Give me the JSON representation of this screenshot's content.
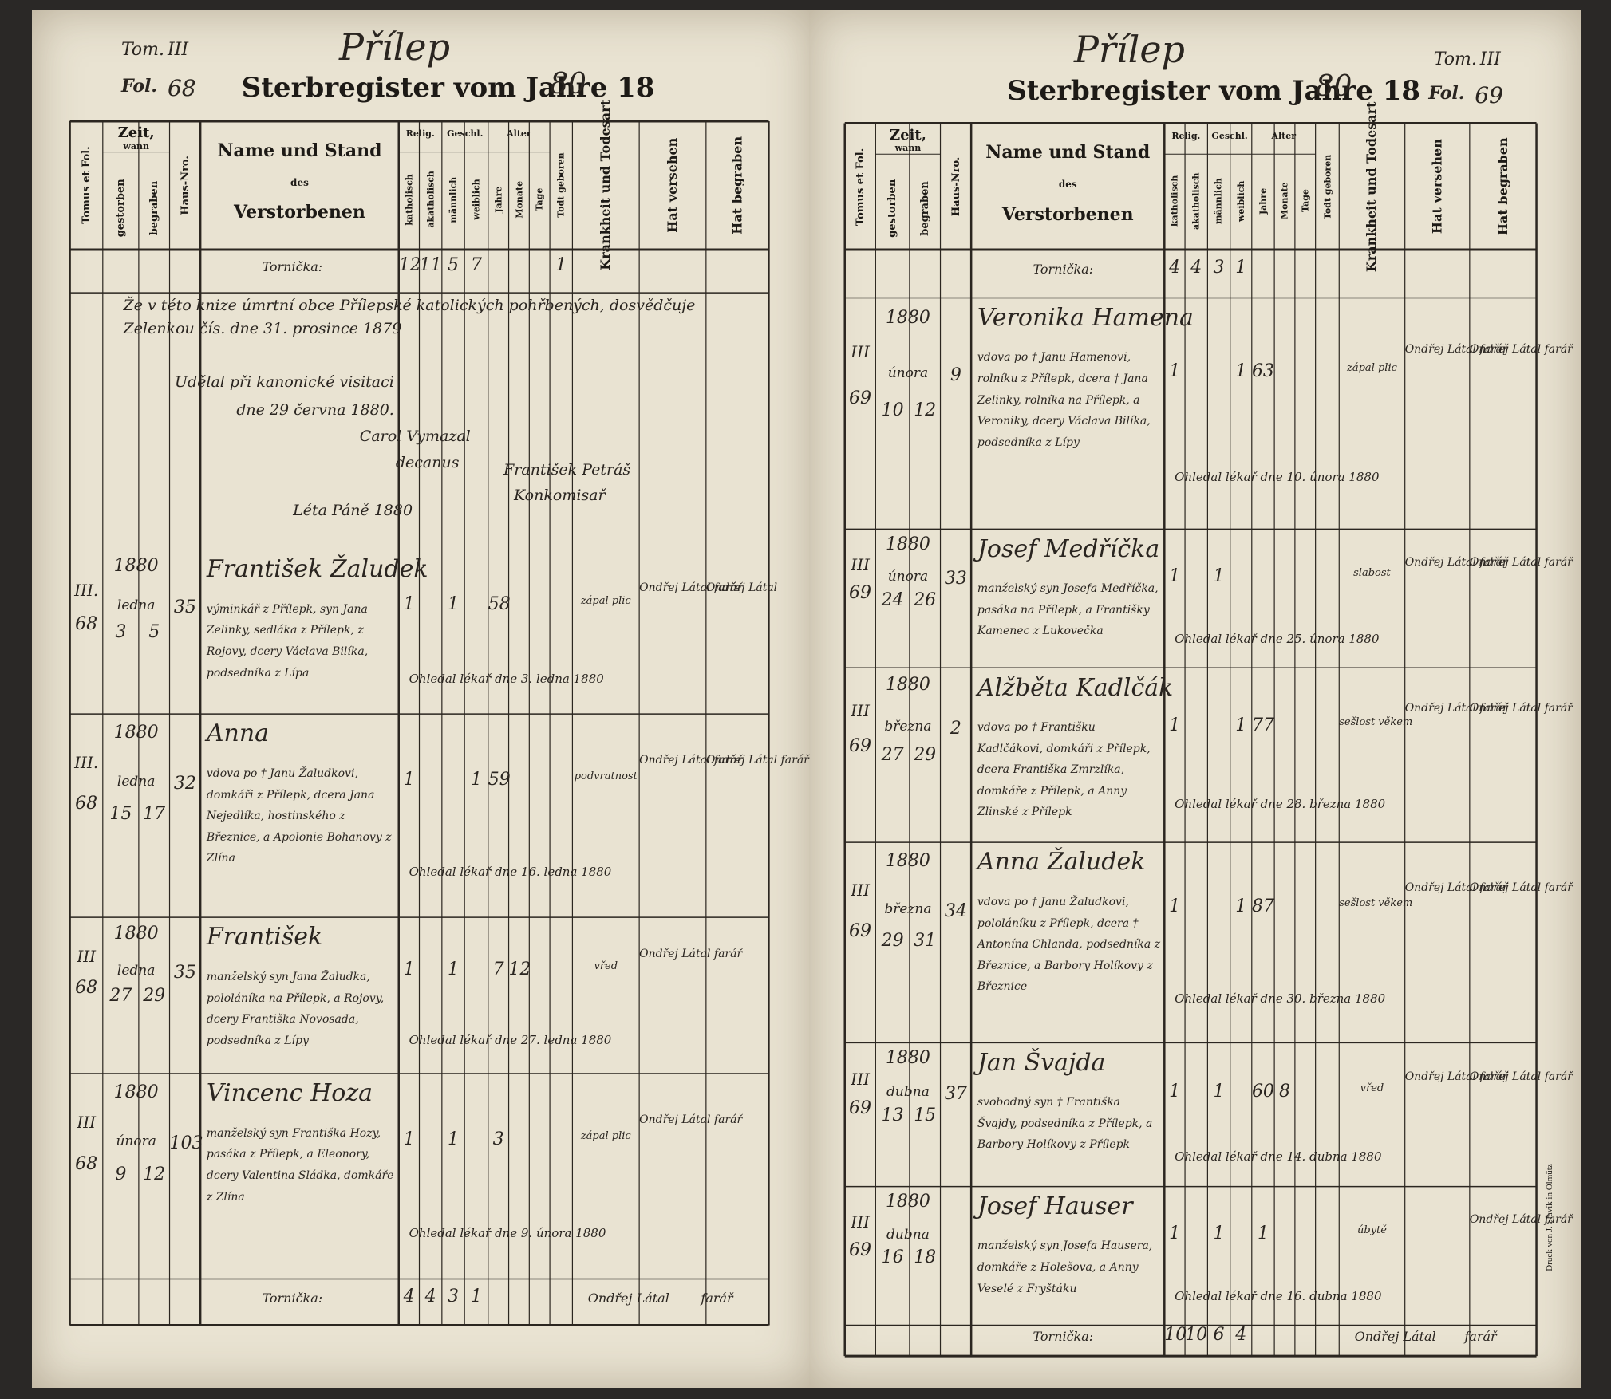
{
  "columns": {
    "tomus": "Tomus et Fol.",
    "zeit": "Zeit,",
    "wann": "wann",
    "gestorben": "gestorben",
    "begraben": "begraben",
    "haus": "Haus-Nro.",
    "name": "Name und Stand",
    "des": "des",
    "verstorbenen": "Verstorbenen",
    "relig": "Relig.",
    "kath": "katholisch",
    "akath": "akatholisch",
    "geschl": "Geschl.",
    "male": "männlich",
    "female": "weiblich",
    "alter": "Alter",
    "jahre": "Jahre",
    "monate": "Monate",
    "tage": "Tage",
    "todt": "Todt geboren",
    "krank": "Krankheit und Todesart",
    "versehen": "Hat versehen",
    "begraben2": "Hat begraben"
  },
  "pages": [
    {
      "place": "Přílep",
      "tom_label": "Tom.",
      "tom": "III",
      "fol_label": "Fol.",
      "fol": "68",
      "title": "Sterbregister vom Jahre 18",
      "year_suffix": "80",
      "summary": {
        "label": "Tornička:",
        "kath": "12",
        "akath": "11",
        "male": "5",
        "female": "7",
        "todt": "1"
      },
      "notes": [
        "Že v této knize úmrtní obce Přílepské katolických pohřbených, dosvědčuje",
        "Zelenkou čís. dne 31. prosince 1879",
        "Udělal při kanonické visitaci",
        "dne 29 června 1880.",
        "Carol Vymazal",
        "decanus",
        "František Petráš",
        "Konkomisař",
        "Léta Páně 1880"
      ],
      "rows": [
        {
          "tomus": "III.",
          "fol": "68",
          "year": "1880",
          "month": "ledna",
          "died": "3",
          "buried": "5",
          "house": "35",
          "name": "František Žaludek",
          "details": "výminkář z Přílepk, syn Jana Zelinky, sedláka z Přílepk, z Rojovy, dcery Václava Bilíka, podsedníka z Lípa",
          "kath": "1",
          "male": "1",
          "years": "58",
          "cause": "zápal plic",
          "versehen": "Ondřej Látal farář",
          "begraben": "Ondřej Látal",
          "note": "Ohledal lékař dne 3. ledna 1880"
        },
        {
          "tomus": "III.",
          "fol": "68",
          "year": "1880",
          "month": "ledna",
          "died": "15",
          "buried": "17",
          "house": "32",
          "name": "Anna",
          "details": "vdova po † Janu Žaludkovi, domkáři z Přílepk, dcera Jana Nejedlíka, hostinského z Březnice, a Apolonie Bohanovy z Zlína",
          "kath": "1",
          "female": "1",
          "years": "59",
          "cause": "podvratnost",
          "versehen": "Ondřej Látal farář",
          "begraben": "Ondřej Látal farář",
          "note": "Ohledal lékař dne 16. ledna 1880"
        },
        {
          "tomus": "III",
          "fol": "68",
          "year": "1880",
          "month": "ledna",
          "died": "27",
          "buried": "29",
          "house": "35",
          "name": "František",
          "details": "manželský syn Jana Žaludka, pololáníka na Přílepk, a Rojovy, dcery Františka Novosada, podsedníka z Lípy",
          "kath": "1",
          "male": "1",
          "years": "7",
          "months": "12",
          "cause": "vřed",
          "versehen": "Ondřej Látal farář",
          "note": "Ohledal lékař dne 27. ledna 1880"
        },
        {
          "tomus": "III",
          "fol": "68",
          "year": "1880",
          "month": "února",
          "died": "9",
          "buried": "12",
          "house": "103",
          "name": "Vincenc Hoza",
          "details": "manželský syn Františka Hozy, pasáka z Přílepk, a Eleonory, dcery Valentina Sládka, domkáře z Zlína",
          "kath": "1",
          "male": "1",
          "years": "3",
          "cause": "zápal plic",
          "versehen": "Ondřej Látal farář",
          "note": "Ohledal lékař dne 9. února 1880"
        }
      ],
      "footer": {
        "label": "Tornička:",
        "kath": "4",
        "akath": "4",
        "male": "3",
        "female": "1",
        "signature": "Ondřej Látal",
        "title": "farář"
      }
    },
    {
      "place": "Přílep",
      "tom_label": "Tom.",
      "tom": "III",
      "fol_label": "Fol.",
      "fol": "69",
      "title": "Sterbregister vom Jahre 18",
      "year_suffix": "80",
      "summary": {
        "label": "Tornička:",
        "kath": "4",
        "akath": "4",
        "male": "3",
        "female": "1"
      },
      "rows": [
        {
          "tomus": "III",
          "fol": "69",
          "year": "1880",
          "month": "února",
          "died": "10",
          "buried": "12",
          "house": "9",
          "name": "Veronika Hamena",
          "details": "vdova po † Janu Hamenovi, rolníku z Přílepk, dcera † Jana Zelinky, rolníka na Přílepk, a Veroniky, dcery Václava Bilíka, podsedníka z Lípy",
          "kath": "1",
          "female": "1",
          "years": "63",
          "cause": "zápal plic",
          "versehen": "Ondřej Látal farář",
          "begraben": "Ondřej Látal farář",
          "note": "Ohledal lékař dne 10. února 1880"
        },
        {
          "tomus": "III",
          "fol": "69",
          "year": "1880",
          "month": "února",
          "died": "24",
          "buried": "26",
          "house": "33",
          "name": "Josef Medříčka",
          "details": "manželský syn Josefa Medříčka, pasáka na Přílepk, a Františky Kamenec z Lukovečka",
          "kath": "1",
          "male": "1",
          "cause": "slabost",
          "versehen": "Ondřej Látal farář",
          "begraben": "Ondřej Látal farář",
          "note": "Ohledal lékař dne 25. února 1880"
        },
        {
          "tomus": "III",
          "fol": "69",
          "year": "1880",
          "month": "března",
          "died": "27",
          "buried": "29",
          "house": "2",
          "name": "Alžběta Kadlčák",
          "details": "vdova po † Františku Kadlčákovi, domkáři z Přílepk, dcera Františka Zmrzlíka, domkáře z Přílepk, a Anny Zlinské z Přílepk",
          "kath": "1",
          "female": "1",
          "years": "77",
          "cause": "sešlost věkem",
          "versehen": "Ondřej Látal farář",
          "begraben": "Ondřej Látal farář",
          "note": "Ohledal lékař dne 28. března 1880"
        },
        {
          "tomus": "III",
          "fol": "69",
          "year": "1880",
          "month": "března",
          "died": "29",
          "buried": "31",
          "house": "34",
          "name": "Anna Žaludek",
          "details": "vdova po † Janu Žaludkovi, pololáníku z Přílepk, dcera † Antonína Chlanda, podsedníka z Březnice, a Barbory Holíkovy z Březnice",
          "kath": "1",
          "female": "1",
          "years": "87",
          "cause": "sešlost věkem",
          "versehen": "Ondřej Látal farář",
          "begraben": "Ondřej Látal farář",
          "note": "Ohledal lékař dne 30. března 1880"
        },
        {
          "tomus": "III",
          "fol": "69",
          "year": "1880",
          "month": "dubna",
          "died": "13",
          "buried": "15",
          "house": "37",
          "name": "Jan Švajda",
          "details": "svobodný syn † Františka Švajdy, podsedníka z Přílepk, a Barbory Holíkovy z Přílepk",
          "kath": "1",
          "male": "1",
          "years": "60",
          "months": "8",
          "cause": "vřed",
          "versehen": "Ondřej Látal farář",
          "begraben": "Ondřej Látal farář",
          "note": "Ohledal lékař dne 14. dubna 1880"
        },
        {
          "tomus": "III",
          "fol": "69",
          "year": "1880",
          "month": "dubna",
          "died": "16",
          "buried": "18",
          "name": "Josef Hauser",
          "details": "manželský syn Josefa Hausera, domkáře z Holešova, a Anny Veselé z Fryštáku",
          "kath": "1",
          "male": "1",
          "years": "1",
          "cause": "úbytě",
          "begraben": "Ondřej Látal farář",
          "note": "Ohledal lékař dne 16. dubna 1880"
        }
      ],
      "footer": {
        "label": "Tornička:",
        "kath": "10",
        "akath": "10",
        "male": "6",
        "female": "4",
        "signature": "Ondřej Látal",
        "title": "farář"
      },
      "printer": "Druck von J. Slavík in Olmütz"
    }
  ]
}
